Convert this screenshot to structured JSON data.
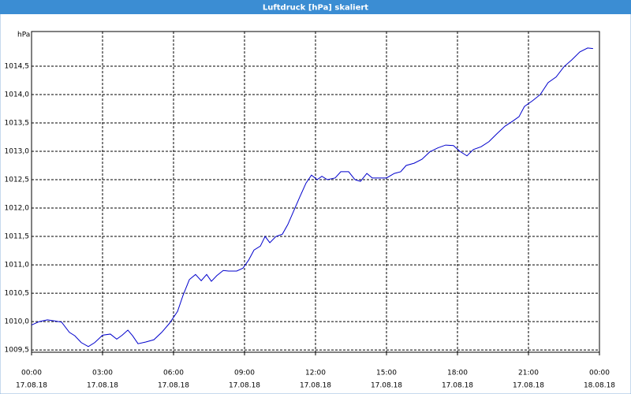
{
  "chart_data": {
    "type": "line",
    "title": "Luftdruck [hPa] skaliert",
    "y_label": "hPa",
    "color": "#0000cc",
    "grid": true,
    "x": [
      0,
      0.33,
      0.67,
      1.0,
      1.27,
      1.6,
      1.83,
      2.1,
      2.4,
      2.67,
      3.0,
      3.33,
      3.6,
      3.83,
      4.07,
      4.27,
      4.5,
      4.83,
      5.17,
      5.5,
      5.83,
      6.17,
      6.4,
      6.67,
      6.93,
      7.17,
      7.4,
      7.6,
      7.83,
      8.1,
      8.33,
      8.67,
      8.93,
      9.17,
      9.4,
      9.67,
      9.87,
      10.07,
      10.33,
      10.6,
      10.83,
      11.07,
      11.33,
      11.6,
      11.83,
      12.07,
      12.27,
      12.5,
      12.83,
      13.07,
      13.4,
      13.67,
      13.9,
      14.17,
      14.4,
      14.73,
      15.0,
      15.33,
      15.6,
      15.83,
      16.17,
      16.5,
      16.83,
      17.17,
      17.5,
      17.83,
      18.1,
      18.4,
      18.67,
      19.0,
      19.33,
      19.67,
      20.0,
      20.33,
      20.6,
      20.83,
      21.17,
      21.5,
      21.83,
      22.17,
      22.5,
      22.83,
      23.17,
      23.5,
      23.73
    ],
    "values": [
      1009.94,
      1010.0,
      1010.03,
      1010.01,
      1009.99,
      1009.81,
      1009.75,
      1009.63,
      1009.56,
      1009.63,
      1009.76,
      1009.78,
      1009.69,
      1009.76,
      1009.85,
      1009.75,
      1009.61,
      1009.64,
      1009.68,
      1009.81,
      1009.97,
      1010.18,
      1010.46,
      1010.74,
      1010.83,
      1010.72,
      1010.83,
      1010.71,
      1010.81,
      1010.9,
      1010.89,
      1010.89,
      1010.94,
      1011.08,
      1011.26,
      1011.33,
      1011.5,
      1011.39,
      1011.5,
      1011.54,
      1011.71,
      1011.94,
      1012.19,
      1012.44,
      1012.58,
      1012.5,
      1012.56,
      1012.5,
      1012.53,
      1012.64,
      1012.64,
      1012.5,
      1012.47,
      1012.61,
      1012.53,
      1012.53,
      1012.53,
      1012.61,
      1012.64,
      1012.75,
      1012.79,
      1012.86,
      1012.99,
      1013.06,
      1013.11,
      1013.1,
      1013.0,
      1012.92,
      1013.03,
      1013.08,
      1013.17,
      1013.31,
      1013.44,
      1013.53,
      1013.61,
      1013.79,
      1013.89,
      1014.0,
      1014.21,
      1014.31,
      1014.49,
      1014.61,
      1014.75,
      1014.82,
      1014.81
    ],
    "xlim": [
      0,
      24
    ],
    "xticks": [
      {
        "value": 0,
        "label": "00:00"
      },
      {
        "value": 3,
        "label": "03:00"
      },
      {
        "value": 6,
        "label": "06:00"
      },
      {
        "value": 9,
        "label": "09:00"
      },
      {
        "value": 12,
        "label": "12:00"
      },
      {
        "value": 15,
        "label": "15:00"
      },
      {
        "value": 18,
        "label": "18:00"
      },
      {
        "value": 21,
        "label": "21:00"
      },
      {
        "value": 24,
        "label": "00:00"
      }
    ],
    "xtick_dates": [
      "17.08.18",
      "17.08.18",
      "17.08.18",
      "17.08.18",
      "17.08.18",
      "17.08.18",
      "17.08.18",
      "17.08.18",
      "18.08.18"
    ],
    "ylim": [
      1009.46,
      1015.11
    ],
    "yticks": [
      {
        "value": 1009.5,
        "label": "1009,5"
      },
      {
        "value": 1010.0,
        "label": "1010,0"
      },
      {
        "value": 1010.5,
        "label": "1010,5"
      },
      {
        "value": 1011.0,
        "label": "1011,0"
      },
      {
        "value": 1011.5,
        "label": "1011,5"
      },
      {
        "value": 1012.0,
        "label": "1012,0"
      },
      {
        "value": 1012.5,
        "label": "1012,5"
      },
      {
        "value": 1013.0,
        "label": "1013,0"
      },
      {
        "value": 1013.5,
        "label": "1013,5"
      },
      {
        "value": 1014.0,
        "label": "1014,0"
      },
      {
        "value": 1014.5,
        "label": "1014,5"
      }
    ]
  }
}
